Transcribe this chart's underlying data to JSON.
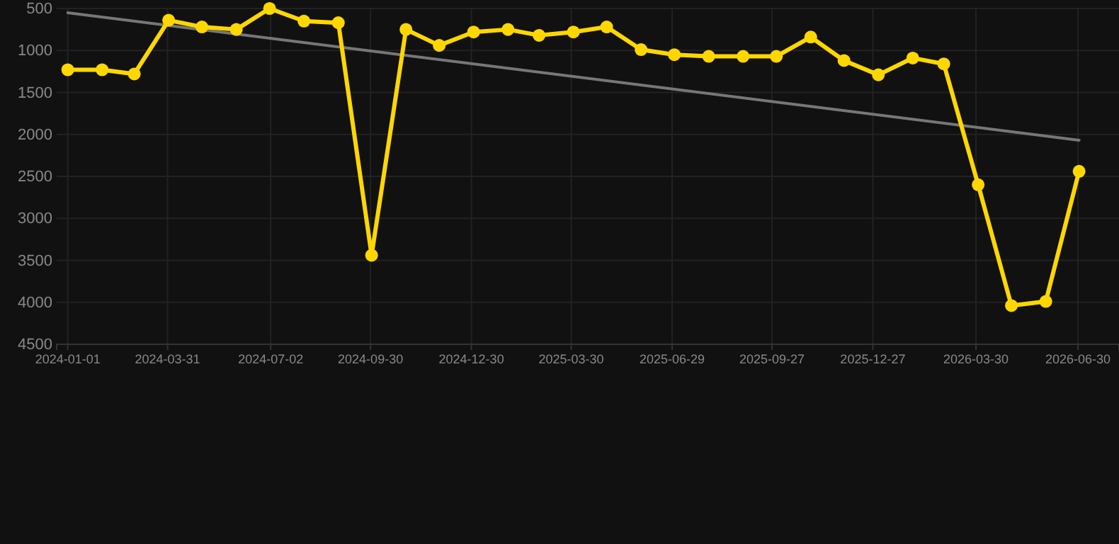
{
  "chart_data": {
    "type": "line",
    "x": [
      "2024-01-01",
      "2024-02-01",
      "2024-03-01",
      "2024-04-01",
      "2024-05-01",
      "2024-06-01",
      "2024-07-01",
      "2024-08-01",
      "2024-09-01",
      "2024-10-01",
      "2024-11-01",
      "2024-12-01",
      "2025-01-01",
      "2025-02-01",
      "2025-03-01",
      "2025-04-01",
      "2025-05-01",
      "2025-06-01",
      "2025-07-01",
      "2025-08-01",
      "2025-09-01",
      "2025-10-01",
      "2025-11-01",
      "2025-12-01",
      "2026-01-01",
      "2026-02-01",
      "2026-03-01",
      "2026-04-01",
      "2026-05-01",
      "2026-06-01",
      "2026-07-01"
    ],
    "series": [
      {
        "color": "#ffd700",
        "marker": "circle",
        "values": [
          1230,
          1230,
          1280,
          640,
          720,
          750,
          500,
          650,
          670,
          3440,
          750,
          940,
          780,
          750,
          820,
          780,
          720,
          990,
          1050,
          1070,
          1070,
          1070,
          840,
          1120,
          1290,
          1090,
          1160,
          2600,
          4040,
          3990,
          2440
        ]
      },
      {
        "color": "#777777",
        "marker": "none",
        "x": [
          "2024-01-01",
          "2026-07-01"
        ],
        "values": [
          550,
          2070
        ]
      }
    ],
    "ylim": [
      4500,
      500
    ],
    "yticks": [
      500,
      1000,
      1500,
      2000,
      2500,
      3000,
      3500,
      4000,
      4500
    ],
    "xlim": [
      "2023-12-22",
      "2026-08-06"
    ],
    "xticks": [
      {
        "value": "2024-01-01",
        "label": "2024-01-01"
      },
      {
        "value": "2024-03-31",
        "label": "2024-03-31"
      },
      {
        "value": "2024-07-02",
        "label": "2024-07-02"
      },
      {
        "value": "2024-09-30",
        "label": "2024-09-30"
      },
      {
        "value": "2024-12-30",
        "label": "2024-12-30"
      },
      {
        "value": "2025-03-30",
        "label": "2025-03-30"
      },
      {
        "value": "2025-06-29",
        "label": "2025-06-29"
      },
      {
        "value": "2025-09-27",
        "label": "2025-09-27"
      },
      {
        "value": "2025-12-27",
        "label": "2025-12-27"
      },
      {
        "value": "2026-03-30",
        "label": "2026-03-30"
      },
      {
        "value": "2026-06-30",
        "label": "2026-06-30"
      }
    ],
    "grid": true
  }
}
